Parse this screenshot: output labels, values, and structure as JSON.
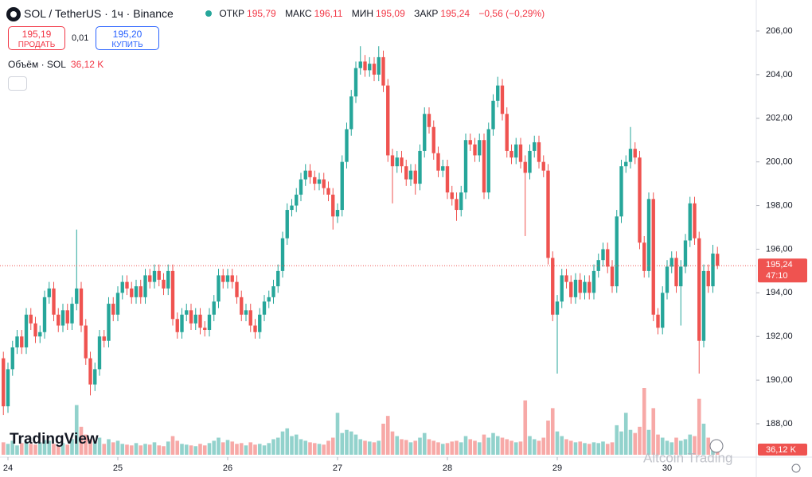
{
  "chart_data": {
    "type": "candlestick",
    "title": "SOL / TetherUS · 1ч · Binance",
    "x": [
      -1,
      0,
      1,
      2,
      3,
      4,
      5,
      6,
      7,
      8,
      9,
      10,
      11,
      12,
      13,
      14,
      15,
      16,
      17,
      18,
      19,
      20,
      21,
      22,
      23,
      24,
      25,
      26,
      27,
      28,
      29,
      30,
      31,
      32,
      33,
      34,
      35,
      36,
      37,
      38,
      39,
      40,
      41,
      42,
      43,
      44,
      45,
      46,
      47,
      48,
      49,
      50,
      51,
      52,
      53,
      54,
      55,
      56,
      57,
      58,
      59,
      60,
      61,
      62,
      63,
      64,
      65,
      66,
      67,
      68,
      69,
      70,
      71,
      72,
      73,
      74,
      75,
      76,
      77,
      78,
      79,
      80,
      81,
      82,
      83,
      84,
      85,
      86,
      87,
      88,
      89,
      90,
      91,
      92,
      93,
      94,
      95,
      96,
      97,
      98,
      99,
      100,
      101,
      102,
      103,
      104,
      105,
      106,
      107,
      108,
      109,
      110,
      111,
      112,
      113,
      114,
      115,
      116,
      117,
      118,
      119,
      120,
      121,
      122,
      123,
      124,
      125,
      126,
      127,
      128,
      129,
      130,
      131,
      132,
      133,
      134,
      135,
      136,
      137,
      138,
      139,
      140,
      141,
      142,
      143,
      144,
      145,
      146,
      147,
      148,
      149,
      150,
      151,
      152,
      153,
      154,
      155
    ],
    "open": [
      191.0,
      188.8,
      190.5,
      191.5,
      192.0,
      191.5,
      193.0,
      192.6,
      192.0,
      192.2,
      193.8,
      194.2,
      193.0,
      192.5,
      193.2,
      192.6,
      193.5,
      194.2,
      192.5,
      191.0,
      189.8,
      190.5,
      192.0,
      191.8,
      193.5,
      193.0,
      194.0,
      194.5,
      194.2,
      193.8,
      194.3,
      193.8,
      194.8,
      194.5,
      195.0,
      194.6,
      194.2,
      195.0,
      192.8,
      192.2,
      193.0,
      193.2,
      192.6,
      193.0,
      192.4,
      192.3,
      193.0,
      193.6,
      194.8,
      194.5,
      194.8,
      194.5,
      193.8,
      193.0,
      193.2,
      192.5,
      192.2,
      193.0,
      193.6,
      193.8,
      194.3,
      195.0,
      196.5,
      197.8,
      198.0,
      198.5,
      199.2,
      199.6,
      199.3,
      199.0,
      199.2,
      198.8,
      198.5,
      197.5,
      197.8,
      200.0,
      201.5,
      203.0,
      204.3,
      204.6,
      204.2,
      204.5,
      204.0,
      204.8,
      203.5,
      200.3,
      199.8,
      200.2,
      199.8,
      199.2,
      199.6,
      199.0,
      200.5,
      202.2,
      201.6,
      200.4,
      199.6,
      199.8,
      198.6,
      198.3,
      197.8,
      198.6,
      201.0,
      200.8,
      200.3,
      201.0,
      198.6,
      201.5,
      202.8,
      203.5,
      202.2,
      200.5,
      200.2,
      200.8,
      200.0,
      199.5,
      200.5,
      200.9,
      200.0,
      199.6,
      195.6,
      193.0,
      193.6,
      194.8,
      194.5,
      193.8,
      194.6,
      194.0,
      194.5,
      194.0,
      195.0,
      195.5,
      196.0,
      195.2,
      194.3,
      197.5,
      199.8,
      200.0,
      200.6,
      200.2,
      196.3,
      195.0,
      198.3,
      193.0,
      192.4,
      194.0,
      195.2,
      195.6,
      194.3,
      195.2,
      196.4,
      198.1,
      196.5,
      191.8,
      195.0,
      194.3,
      195.79
    ],
    "high": [
      191.3,
      190.8,
      191.8,
      192.3,
      192.3,
      193.3,
      193.3,
      192.9,
      192.5,
      194.1,
      194.5,
      194.5,
      193.3,
      193.5,
      193.5,
      193.8,
      196.9,
      194.5,
      192.8,
      191.3,
      190.8,
      192.3,
      192.3,
      193.8,
      193.8,
      194.3,
      194.8,
      194.8,
      194.5,
      194.6,
      194.6,
      195.1,
      195.1,
      195.3,
      195.3,
      194.9,
      195.3,
      195.3,
      193.1,
      193.3,
      193.5,
      193.5,
      193.3,
      193.3,
      192.7,
      193.3,
      193.9,
      195.1,
      195.1,
      195.1,
      195.1,
      194.8,
      194.1,
      193.5,
      193.5,
      192.8,
      193.3,
      193.9,
      194.1,
      194.6,
      195.3,
      196.8,
      198.1,
      198.3,
      198.8,
      199.5,
      199.9,
      199.9,
      199.6,
      199.5,
      199.5,
      199.1,
      198.8,
      198.1,
      200.3,
      201.8,
      203.3,
      204.6,
      205.3,
      204.9,
      204.8,
      204.8,
      205.3,
      205.1,
      203.8,
      200.6,
      200.5,
      200.5,
      200.1,
      199.9,
      199.9,
      200.8,
      202.5,
      202.5,
      201.9,
      200.7,
      200.1,
      200.1,
      198.9,
      198.6,
      198.9,
      201.3,
      201.3,
      201.1,
      201.3,
      201.3,
      201.8,
      203.1,
      203.9,
      203.8,
      202.5,
      200.8,
      201.1,
      201.1,
      200.3,
      200.8,
      201.2,
      201.2,
      200.3,
      199.9,
      195.9,
      193.9,
      195.1,
      195.1,
      194.8,
      194.9,
      194.9,
      194.8,
      194.8,
      195.3,
      195.8,
      196.3,
      196.3,
      195.5,
      197.8,
      200.1,
      200.3,
      201.6,
      200.9,
      200.5,
      196.6,
      198.6,
      198.6,
      193.3,
      194.3,
      195.5,
      195.9,
      195.9,
      195.5,
      196.7,
      198.4,
      198.4,
      196.8,
      195.3,
      195.3,
      196.2,
      196.11
    ],
    "low": [
      188.4,
      188.5,
      190.2,
      191.2,
      191.2,
      191.2,
      192.3,
      191.7,
      191.7,
      191.9,
      193.5,
      192.7,
      192.2,
      192.2,
      192.3,
      192.3,
      193.2,
      192.2,
      190.7,
      189.3,
      189.5,
      190.2,
      191.5,
      191.5,
      192.7,
      192.7,
      193.7,
      193.9,
      193.5,
      193.5,
      193.5,
      193.5,
      194.2,
      194.2,
      194.3,
      193.9,
      193.9,
      192.5,
      191.9,
      191.9,
      192.7,
      192.3,
      192.3,
      192.1,
      192.0,
      192.0,
      192.7,
      193.3,
      194.2,
      194.2,
      194.2,
      193.5,
      192.7,
      192.7,
      192.2,
      191.9,
      191.9,
      192.7,
      193.3,
      193.5,
      194.0,
      194.7,
      196.2,
      197.5,
      197.7,
      198.2,
      198.9,
      199.0,
      198.7,
      198.7,
      198.5,
      198.2,
      196.9,
      197.2,
      197.5,
      199.7,
      201.2,
      202.7,
      204.0,
      203.9,
      203.9,
      203.7,
      203.7,
      203.2,
      200.0,
      198.1,
      199.5,
      199.5,
      198.9,
      198.9,
      198.5,
      198.7,
      200.2,
      201.3,
      200.1,
      199.3,
      199.3,
      198.3,
      198.0,
      197.3,
      197.5,
      198.3,
      200.5,
      200.0,
      200.0,
      198.3,
      198.3,
      201.2,
      202.5,
      201.9,
      200.2,
      199.9,
      199.9,
      199.7,
      196.6,
      199.2,
      200.2,
      199.7,
      199.3,
      195.3,
      192.7,
      190.3,
      193.3,
      194.2,
      193.5,
      193.5,
      193.7,
      193.7,
      193.7,
      193.7,
      194.7,
      195.2,
      194.9,
      194.0,
      194.0,
      197.2,
      199.5,
      199.7,
      199.9,
      196.0,
      194.7,
      194.7,
      192.7,
      192.1,
      192.1,
      193.7,
      194.9,
      194.0,
      192.5,
      194.9,
      196.1,
      196.2,
      190.3,
      191.5,
      194.0,
      194.0,
      195.09
    ],
    "close": [
      188.8,
      190.5,
      191.5,
      192.0,
      191.5,
      193.0,
      192.6,
      192.0,
      192.2,
      193.8,
      194.2,
      193.0,
      192.5,
      193.2,
      192.6,
      193.5,
      194.2,
      192.5,
      191.0,
      189.8,
      190.5,
      192.0,
      191.8,
      193.5,
      193.0,
      194.0,
      194.5,
      194.2,
      193.8,
      194.3,
      193.8,
      194.8,
      194.5,
      195.0,
      194.6,
      194.2,
      195.0,
      192.8,
      192.2,
      193.0,
      193.2,
      192.6,
      193.0,
      192.4,
      192.3,
      193.0,
      193.6,
      194.8,
      194.5,
      194.8,
      194.5,
      193.8,
      193.0,
      193.2,
      192.5,
      192.2,
      193.0,
      193.6,
      193.8,
      194.3,
      195.0,
      196.5,
      197.8,
      198.0,
      198.5,
      199.2,
      199.6,
      199.3,
      199.0,
      199.2,
      198.8,
      198.5,
      197.5,
      197.8,
      200.0,
      201.5,
      203.0,
      204.3,
      204.6,
      204.2,
      204.5,
      204.0,
      204.8,
      203.5,
      200.3,
      199.8,
      200.2,
      199.8,
      199.2,
      199.6,
      199.0,
      200.5,
      202.2,
      201.6,
      200.4,
      199.6,
      199.8,
      198.6,
      198.3,
      197.8,
      198.6,
      201.0,
      200.8,
      200.3,
      201.0,
      198.6,
      201.5,
      202.8,
      203.5,
      202.2,
      200.5,
      200.2,
      200.8,
      200.0,
      199.5,
      200.5,
      200.9,
      200.0,
      199.6,
      195.6,
      193.0,
      193.6,
      194.8,
      194.5,
      193.8,
      194.6,
      194.0,
      194.5,
      194.0,
      195.0,
      195.5,
      196.0,
      195.2,
      194.3,
      197.5,
      199.8,
      200.0,
      200.6,
      200.2,
      196.3,
      195.0,
      198.3,
      193.0,
      192.4,
      194.0,
      195.2,
      195.6,
      194.3,
      195.2,
      196.4,
      198.1,
      196.5,
      191.8,
      195.0,
      194.3,
      195.8,
      195.24
    ],
    "volume": [
      80,
      70,
      90,
      60,
      75,
      85,
      70,
      65,
      80,
      95,
      90,
      70,
      60,
      75,
      65,
      100,
      320,
      180,
      130,
      100,
      90,
      110,
      70,
      100,
      80,
      90,
      70,
      65,
      60,
      75,
      60,
      70,
      65,
      80,
      60,
      55,
      85,
      120,
      90,
      70,
      65,
      60,
      55,
      70,
      60,
      75,
      90,
      110,
      80,
      95,
      85,
      70,
      75,
      60,
      80,
      65,
      70,
      60,
      75,
      100,
      110,
      150,
      170,
      120,
      130,
      100,
      90,
      80,
      75,
      70,
      65,
      90,
      110,
      270,
      140,
      160,
      150,
      130,
      100,
      90,
      85,
      80,
      90,
      200,
      250,
      150,
      120,
      100,
      95,
      80,
      90,
      110,
      140,
      100,
      90,
      80,
      70,
      75,
      85,
      90,
      80,
      120,
      100,
      90,
      80,
      130,
      110,
      140,
      120,
      110,
      100,
      90,
      80,
      85,
      350,
      120,
      100,
      90,
      110,
      220,
      300,
      150,
      120,
      100,
      90,
      80,
      85,
      75,
      70,
      80,
      75,
      85,
      70,
      80,
      190,
      150,
      270,
      160,
      140,
      180,
      430,
      160,
      300,
      130,
      110,
      90,
      80,
      110,
      90,
      100,
      130,
      120,
      360,
      200,
      110,
      80,
      36.12
    ],
    "volume_label": "36,12 K",
    "volume_title": "Объём · SOL",
    "xlim": [
      -1.74,
      163.48
    ],
    "ylim": [
      186.58,
      207.42
    ],
    "yticks": [
      {
        "value": 188,
        "label": "188,00"
      },
      {
        "value": 190,
        "label": "190,00"
      },
      {
        "value": 192,
        "label": "192,00"
      },
      {
        "value": 194,
        "label": "194,00"
      },
      {
        "value": 196,
        "label": "196,00"
      },
      {
        "value": 198,
        "label": "198,00"
      },
      {
        "value": 200,
        "label": "200,00"
      },
      {
        "value": 202,
        "label": "202,00"
      },
      {
        "value": 204,
        "label": "204,00"
      },
      {
        "value": 206,
        "label": "206,00"
      }
    ],
    "xticks": [
      {
        "value": 0,
        "label": "24"
      },
      {
        "value": 24,
        "label": "25"
      },
      {
        "value": 48,
        "label": "26"
      },
      {
        "value": 72,
        "label": "27"
      },
      {
        "value": 96,
        "label": "28"
      },
      {
        "value": 120,
        "label": "29"
      },
      {
        "value": 144,
        "label": "30"
      }
    ],
    "up_color": "#26a69a",
    "down_color": "#ef5350",
    "grid": false,
    "last_price": {
      "value": 195.24,
      "label": "195,24"
    },
    "countdown": "47:10"
  },
  "header": {
    "open_label": "ОТКР",
    "open": "195,79",
    "high_label": "МАКС",
    "high": "196,11",
    "low_label": "МИН",
    "low": "195,09",
    "close_label": "ЗАКР",
    "close": "195,24",
    "change": "−0,56 (−0,29%)"
  },
  "trade": {
    "sell_price": "195,19",
    "sell": "ПРОДАТЬ",
    "spread": "0,01",
    "buy_price": "195,20",
    "buy": "КУПИТЬ"
  },
  "watermark": "TradingView",
  "source_watermark": "Altcoin Trading"
}
